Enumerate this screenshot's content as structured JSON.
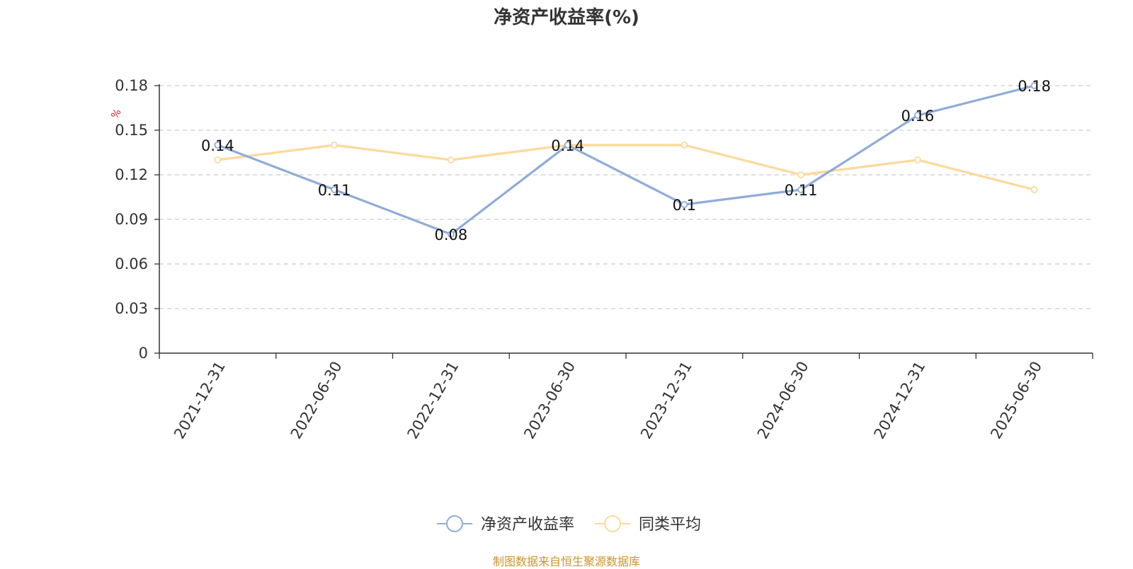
{
  "chart_data": {
    "type": "line",
    "title": "净资产收益率(%)",
    "ylabel": "%",
    "xlabel": "",
    "categories": [
      "2021-12-31",
      "2022-06-30",
      "2022-12-31",
      "2023-06-30",
      "2023-12-31",
      "2024-06-30",
      "2024-12-31",
      "2025-06-30"
    ],
    "series": [
      {
        "name": "净资产收益率",
        "values": [
          0.14,
          0.11,
          0.08,
          0.14,
          0.1,
          0.11,
          0.16,
          0.18
        ],
        "color": "#8eacd8",
        "data_labels": [
          "0.14",
          "0.11",
          "0.08",
          "0.14",
          "0.1",
          "0.11",
          "0.16",
          "0.18"
        ]
      },
      {
        "name": "同类平均",
        "values": [
          0.13,
          0.14,
          0.13,
          0.14,
          0.14,
          0.12,
          0.13,
          0.11
        ],
        "color": "#fcd99a"
      }
    ],
    "ylim": [
      0,
      0.18
    ],
    "yticks": [
      "0",
      "0.03",
      "0.06",
      "0.09",
      "0.12",
      "0.15",
      "0.18"
    ],
    "grid": true,
    "legend_position": "bottom-center"
  },
  "footer": {
    "source": "制图数据来自恒生聚源数据库"
  },
  "colors": {
    "axis": "#333333",
    "grid": "#cccccc",
    "ylabel": "#e02020",
    "source": "#c8962a"
  }
}
